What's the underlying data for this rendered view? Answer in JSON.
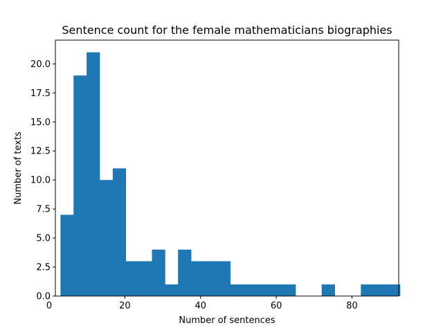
{
  "chart_data": {
    "type": "bar",
    "title": "Sentence count for the female mathematicians biographies",
    "xlabel": "Number of sentences",
    "ylabel": "Number of texts",
    "xlim": [
      1.65,
      92.35
    ],
    "ylim": [
      0,
      22.05
    ],
    "xticks": [
      0,
      20,
      40,
      60,
      80
    ],
    "yticks": [
      "0.0",
      "2.5",
      "5.0",
      "7.5",
      "10.0",
      "12.5",
      "15.0",
      "17.5",
      "20.0"
    ],
    "bin_start": 3,
    "bin_width": 3.45,
    "values": [
      7,
      19,
      21,
      10,
      11,
      3,
      3,
      4,
      1,
      4,
      3,
      3,
      3,
      1,
      1,
      1,
      1,
      1,
      0,
      0,
      1,
      0,
      0,
      1,
      1,
      1
    ],
    "grid": false,
    "bar_color": "#1f77b4"
  }
}
